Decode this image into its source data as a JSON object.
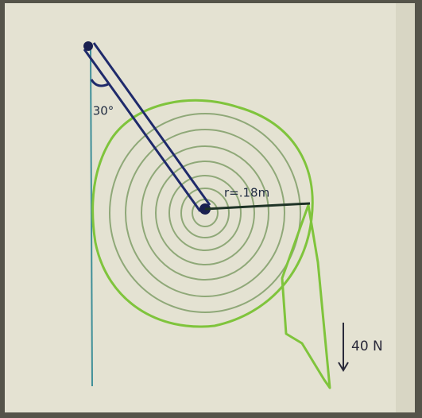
{
  "labels": {
    "angle": "30°",
    "radius": "r=.18m",
    "force": "40 N"
  }
}
